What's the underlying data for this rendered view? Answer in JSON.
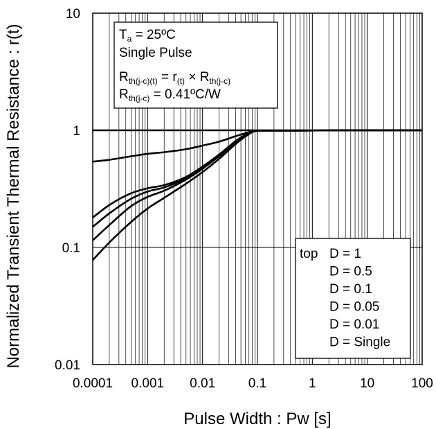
{
  "chart_data": {
    "type": "line",
    "xlabel": "Pulse Width : Pw [s]",
    "ylabel": "Normalized Transient Thermal Resistance : r(t)",
    "x_scale": "log",
    "y_scale": "log",
    "xlim": [
      0.0001,
      100
    ],
    "ylim": [
      0.01,
      10
    ],
    "grid": true,
    "x_ticks": [
      "0.0001",
      "0.001",
      "0.01",
      "0.1",
      "1",
      "10",
      "100"
    ],
    "y_ticks": [
      "0.01",
      "0.1",
      "1",
      "10"
    ],
    "conditions": {
      "ta_symbol": "T",
      "ta_sub": "a",
      "ta_value": " = 25ºC",
      "pulse": "Single Pulse",
      "formula_r": "R",
      "formula_r_sub": "th(j-c)(t)",
      "formula_eq": " = r",
      "formula_rt_sub": "(t)",
      "formula_times": " × R",
      "formula_rjc_sub": "th(j-c)",
      "rjc_symbol": "R",
      "rjc_sub": "th(j-c)",
      "rjc_value": " = 0.41ºC/W"
    },
    "legend": {
      "placement": "bottom-right",
      "prefix": "top",
      "entries": [
        "D = 1",
        "D = 0.5",
        "D = 0.1",
        "D = 0.05",
        "D = 0.01",
        "D = Single"
      ]
    },
    "series": [
      {
        "name": "D = 1",
        "x": [
          0.0001,
          0.1,
          100
        ],
        "y": [
          1,
          1,
          1
        ]
      },
      {
        "name": "D = 0.5",
        "x": [
          0.0001,
          0.0002,
          0.0005,
          0.001,
          0.002,
          0.005,
          0.01,
          0.02,
          0.05,
          0.1,
          100
        ],
        "y": [
          0.54,
          0.56,
          0.6,
          0.63,
          0.65,
          0.69,
          0.74,
          0.8,
          0.92,
          0.99,
          1
        ]
      },
      {
        "name": "D = 0.1",
        "x": [
          0.0001,
          0.0002,
          0.0005,
          0.001,
          0.002,
          0.005,
          0.01,
          0.02,
          0.05,
          0.1,
          100
        ],
        "y": [
          0.18,
          0.23,
          0.29,
          0.32,
          0.34,
          0.4,
          0.49,
          0.62,
          0.87,
          0.99,
          1
        ]
      },
      {
        "name": "D = 0.05",
        "x": [
          0.0001,
          0.0002,
          0.0005,
          0.001,
          0.002,
          0.005,
          0.01,
          0.02,
          0.05,
          0.1,
          100
        ],
        "y": [
          0.15,
          0.195,
          0.26,
          0.3,
          0.325,
          0.39,
          0.48,
          0.61,
          0.86,
          0.99,
          1
        ]
      },
      {
        "name": "D = 0.01",
        "x": [
          0.0001,
          0.0002,
          0.0005,
          0.001,
          0.002,
          0.005,
          0.01,
          0.02,
          0.05,
          0.1,
          100
        ],
        "y": [
          0.115,
          0.155,
          0.225,
          0.27,
          0.305,
          0.38,
          0.47,
          0.6,
          0.85,
          0.99,
          1
        ]
      },
      {
        "name": "D = Single",
        "x": [
          0.0001,
          0.0002,
          0.0005,
          0.001,
          0.002,
          0.005,
          0.01,
          0.02,
          0.05,
          0.1,
          100
        ],
        "y": [
          0.078,
          0.11,
          0.165,
          0.215,
          0.265,
          0.35,
          0.44,
          0.57,
          0.83,
          0.99,
          1
        ]
      }
    ]
  }
}
